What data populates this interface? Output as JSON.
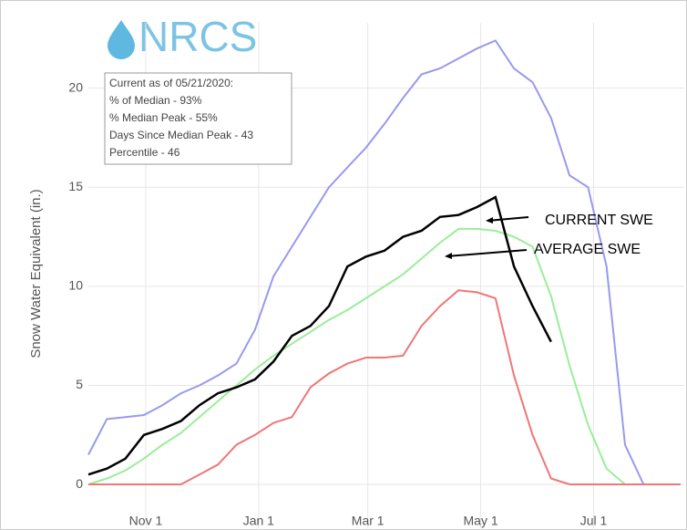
{
  "chart_data": {
    "type": "line",
    "logo": "NRCS",
    "y_label": "Snow Water Equivalent (in.)",
    "info_box": [
      "Current as of 05/21/2020:",
      "% of Median - 93%",
      "% Median Peak - 55%",
      "Days Since Median Peak - 43",
      "Percentile - 46"
    ],
    "annotations": [
      "CURRENT SWE",
      "AVERAGE SWE"
    ],
    "x": [
      0,
      10,
      20,
      30,
      40,
      50,
      60,
      70,
      80,
      90,
      100,
      110,
      120,
      130,
      140,
      150,
      160,
      170,
      180,
      190,
      200,
      210,
      220,
      230,
      240,
      250,
      260,
      270,
      280,
      290,
      300,
      310,
      320
    ],
    "xlim": [
      0,
      322
    ],
    "xticks": [
      {
        "value": 31,
        "label": "Nov 1"
      },
      {
        "value": 92,
        "label": "Jan 1"
      },
      {
        "value": 151,
        "label": "Mar 1"
      },
      {
        "value": 212,
        "label": "May 1"
      },
      {
        "value": 273,
        "label": "Jul 1"
      }
    ],
    "ylim": [
      -2.3,
      23.3
    ],
    "yticks": [
      0,
      5,
      10,
      15,
      20
    ],
    "grid": true,
    "series": [
      {
        "color": "#9999ee",
        "values": [
          1.5,
          3.3,
          3.4,
          3.5,
          4.0,
          4.6,
          5.0,
          5.5,
          6.1,
          7.8,
          10.5,
          12,
          13.5,
          15,
          16,
          17,
          18.2,
          19.5,
          20.7,
          21,
          21.5,
          22,
          22.4,
          21,
          20.3,
          18.5,
          15.6,
          15,
          11,
          2,
          0,
          0,
          0
        ]
      },
      {
        "color": "#99ee99",
        "values": [
          0,
          0.3,
          0.7,
          1.3,
          2.0,
          2.6,
          3.4,
          4.2,
          5.0,
          5.8,
          6.5,
          7.1,
          7.7,
          8.3,
          8.8,
          9.4,
          10.0,
          10.6,
          11.4,
          12.2,
          12.9,
          12.9,
          12.8,
          12.5,
          12.0,
          9.5,
          6.0,
          3.0,
          0.8,
          0,
          0,
          0,
          0
        ]
      },
      {
        "color": "#ee7777",
        "values": [
          0,
          0,
          0,
          0,
          0,
          0,
          0.5,
          1.0,
          2.0,
          2.5,
          3.1,
          3.4,
          4.9,
          5.6,
          6.1,
          6.4,
          6.4,
          6.5,
          8.0,
          9.0,
          9.8,
          9.7,
          9.4,
          5.5,
          2.5,
          0.3,
          0,
          0,
          0,
          0,
          0,
          0,
          0
        ]
      },
      {
        "color": "#000000",
        "values": [
          0.5,
          0.8,
          1.3,
          2.5,
          2.8,
          3.2,
          4.0,
          4.6,
          4.9,
          5.3,
          6.2,
          7.5,
          8.0,
          9.0,
          11.0,
          11.5,
          11.8,
          12.5,
          12.8,
          13.5,
          13.6,
          14.0,
          14.5,
          11.0,
          9.0,
          7.2,
          null,
          null,
          null,
          null,
          null,
          null,
          null
        ]
      }
    ]
  }
}
